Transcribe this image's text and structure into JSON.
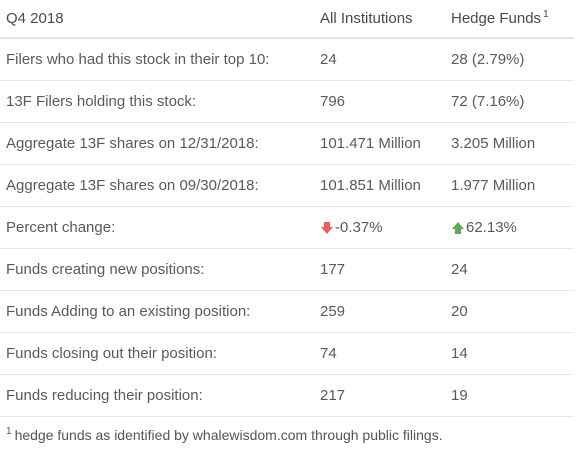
{
  "header": {
    "period": "Q4 2018",
    "col_all": "All Institutions",
    "col_hedge": "Hedge Funds",
    "col_hedge_footnote_mark": "1"
  },
  "rows": [
    {
      "label": "Filers who had this stock in their top 10:",
      "all": "24",
      "hedge": "28 (2.79%)"
    },
    {
      "label": "13F Filers holding this stock:",
      "all": "796",
      "hedge": "72 (7.16%)"
    },
    {
      "label": "Aggregate 13F shares on 12/31/2018:",
      "all": "101.471 Million",
      "hedge": "3.205 Million"
    },
    {
      "label": "Aggregate 13F shares on 09/30/2018:",
      "all": "101.851 Million",
      "hedge": "1.977 Million"
    },
    {
      "label": "Percent change:",
      "all": "-0.37%",
      "hedge": "62.13%",
      "all_icon": "down-arrow-icon",
      "hedge_icon": "up-arrow-icon"
    },
    {
      "label": "Funds creating new positions:",
      "all": "177",
      "hedge": "24"
    },
    {
      "label": "Funds Adding to an existing position:",
      "all": "259",
      "hedge": "20"
    },
    {
      "label": "Funds closing out their position:",
      "all": "74",
      "hedge": "14"
    },
    {
      "label": "Funds reducing their position:",
      "all": "217",
      "hedge": "19"
    }
  ],
  "colors": {
    "negative": "#e4645c",
    "positive": "#5ea85a"
  },
  "footnote": {
    "mark": "1",
    "text": "hedge funds as identified by whalewisdom.com through public filings."
  }
}
